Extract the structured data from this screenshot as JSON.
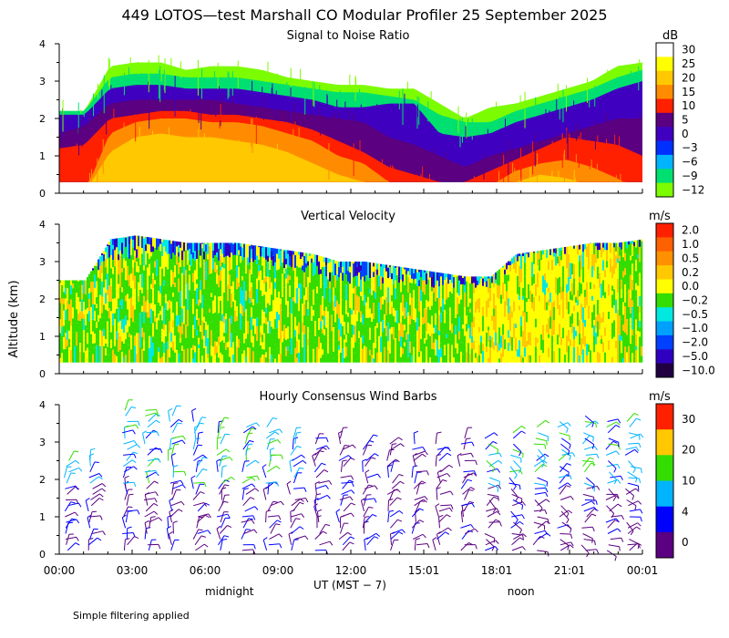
{
  "chart_data": {
    "type": "heatmap",
    "title": "449 LOTOS—test Marshall CO Modular Profiler 25 September 2025",
    "ylabel": "Altitude (km)",
    "xlabel": "UT  (MST − 7)",
    "x_ticks": [
      "00:00",
      "03:00",
      "06:00",
      "09:00",
      "12:00",
      "15:01",
      "18:01",
      "21:01",
      "00:01"
    ],
    "x_notes": [
      {
        "label": "midnight",
        "hour": 7
      },
      {
        "label": "noon",
        "hour": 19
      }
    ],
    "xlim_hours": [
      0,
      24
    ],
    "ylim_km": [
      0,
      4
    ],
    "y_ticks": [
      "0",
      "1",
      "2",
      "3",
      "4"
    ],
    "footnote": "Simple filtering applied",
    "panels": [
      {
        "title": "Signal to Noise Ratio",
        "unit": "dB",
        "colorbar_labels": [
          "30",
          "25",
          "20",
          "15",
          "10",
          "5",
          "0",
          "−3",
          "−6",
          "−9",
          "−12"
        ],
        "colors": [
          "#ffffff",
          "#ffff00",
          "#ffc800",
          "#ff8c00",
          "#ff2000",
          "#5a0080",
          "#4000c0",
          "#0030ff",
          "#00b4ff",
          "#00e070",
          "#7cfc00"
        ],
        "layers": [
          {
            "name": "low",
            "color": "#7cfc00",
            "top_km": [
              2.2,
              2.2,
              3.4,
              3.5,
              3.5,
              3.3,
              3.4,
              3.4,
              3.3,
              3.1,
              3.0,
              2.9,
              2.9,
              2.8,
              2.8,
              2.4,
              2.0,
              2.3,
              2.4,
              2.6,
              2.8,
              3.0,
              3.4,
              3.5
            ]
          },
          {
            "name": "mid",
            "color": "#00e070",
            "top_km": [
              2.2,
              2.2,
              3.1,
              3.2,
              3.2,
              3.1,
              3.1,
              3.1,
              3.0,
              2.9,
              2.8,
              2.7,
              2.7,
              2.6,
              2.5,
              2.1,
              1.9,
              1.9,
              2.2,
              2.4,
              2.6,
              2.8,
              3.1,
              3.3
            ]
          },
          {
            "name": "noise-floor",
            "color": "#4000c0",
            "top_km": [
              2.1,
              2.1,
              2.8,
              2.9,
              2.9,
              2.8,
              2.8,
              2.8,
              2.7,
              2.6,
              2.5,
              2.3,
              2.3,
              2.4,
              2.4,
              1.6,
              1.5,
              1.6,
              1.9,
              2.1,
              2.3,
              2.5,
              2.8,
              3.0
            ]
          },
          {
            "name": "purple",
            "color": "#5a0080",
            "top_km": [
              1.6,
              1.8,
              2.4,
              2.5,
              2.5,
              2.5,
              2.5,
              2.4,
              2.3,
              2.2,
              2.1,
              2.0,
              1.9,
              1.5,
              1.3,
              1.0,
              0.7,
              1.0,
              1.2,
              1.4,
              1.6,
              1.8,
              2.0,
              2.0
            ]
          },
          {
            "name": "red",
            "color": "#ff2000",
            "top_km": [
              1.2,
              1.3,
              2.0,
              2.1,
              2.2,
              2.2,
              2.1,
              2.1,
              2.0,
              1.9,
              1.7,
              1.4,
              1.1,
              0.7,
              0.5,
              0.3,
              0.3,
              0.6,
              0.9,
              1.2,
              1.5,
              1.4,
              1.3,
              1.0
            ]
          },
          {
            "name": "orange",
            "color": "#ff8c00",
            "top_km": [
              0.0,
              0.0,
              1.6,
              1.9,
              2.0,
              2.0,
              1.9,
              1.9,
              1.8,
              1.6,
              1.4,
              1.0,
              0.8,
              0.3,
              0.0,
              0.0,
              0.0,
              0.2,
              0.6,
              0.8,
              0.9,
              0.7,
              0.4,
              0.0
            ]
          },
          {
            "name": "gold",
            "color": "#ffc800",
            "top_km": [
              0.0,
              0.0,
              1.1,
              1.5,
              1.6,
              1.5,
              1.5,
              1.4,
              1.3,
              1.1,
              0.8,
              0.5,
              0.3,
              0.0,
              0.0,
              0.0,
              0.0,
              0.0,
              0.3,
              0.5,
              0.4,
              0.2,
              0.0,
              0.0
            ]
          }
        ]
      },
      {
        "title": "Vertical Velocity",
        "unit": "m/s",
        "colorbar_labels": [
          "2.0",
          "1.0",
          "0.5",
          "0.2",
          "0.0",
          "−0.2",
          "−0.5",
          "−1.0",
          "−2.0",
          "−5.0",
          "−10.0"
        ],
        "colors": [
          "#ff2000",
          "#ff6000",
          "#ff9000",
          "#ffc800",
          "#ffff00",
          "#33dd00",
          "#00e8e0",
          "#00a0ff",
          "#0040ff",
          "#3000c0",
          "#200040"
        ],
        "top_km": [
          2.5,
          2.5,
          3.6,
          3.7,
          3.6,
          3.5,
          3.5,
          3.5,
          3.4,
          3.3,
          3.2,
          3.0,
          3.0,
          2.9,
          2.8,
          2.7,
          2.6,
          2.6,
          3.2,
          3.3,
          3.4,
          3.5,
          3.5,
          3.6
        ],
        "noise_top_km": [
          2.5,
          2.5,
          3.0,
          3.1,
          3.1,
          3.0,
          3.0,
          3.0,
          2.9,
          2.8,
          2.6,
          2.4,
          2.4,
          2.4,
          2.3,
          2.3,
          2.3,
          2.3,
          2.9,
          3.1,
          3.2,
          3.3,
          3.3,
          3.4
        ],
        "typical_range_m_s": [
          -0.5,
          0.5
        ]
      },
      {
        "title": "Hourly Consensus Wind Barbs",
        "unit": "m/s",
        "colorbar_labels": [
          "30",
          "20",
          "10",
          "4",
          "0"
        ],
        "colors": [
          "#ff2000",
          "#ffc800",
          "#33dd00",
          "#00b4ff",
          "#0000ff",
          "#5a0080"
        ],
        "barb_hours": [
          0.3,
          1.3,
          2.7,
          3.6,
          4.6,
          5.6,
          6.6,
          7.6,
          8.6,
          9.6,
          10.6,
          11.6,
          12.6,
          13.6,
          14.6,
          15.6,
          16.6,
          17.6,
          18.6,
          19.6,
          20.6,
          21.6,
          22.6,
          23.4
        ],
        "barb_top_km": [
          2.6,
          2.6,
          3.9,
          3.9,
          3.7,
          3.6,
          3.5,
          3.4,
          3.4,
          3.2,
          3.1,
          3.1,
          3.0,
          3.0,
          3.0,
          3.0,
          3.1,
          3.2,
          3.3,
          3.4,
          3.6,
          3.7,
          3.6,
          3.6
        ]
      }
    ]
  }
}
